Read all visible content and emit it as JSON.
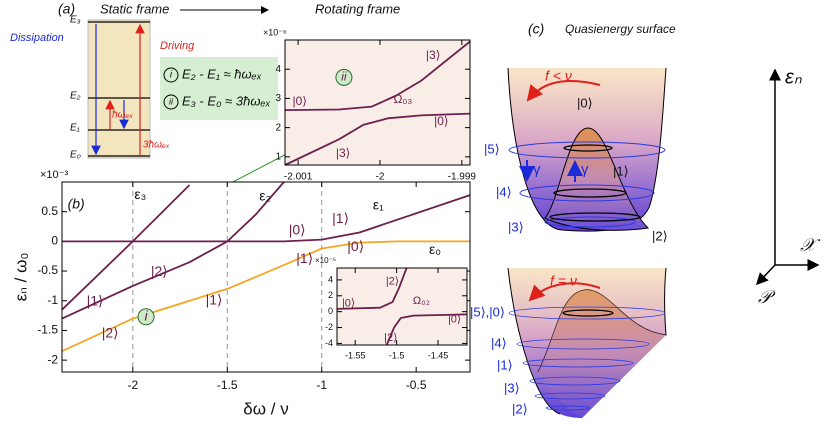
{
  "panel_a": {
    "label": "(a)",
    "static": "Static frame",
    "rotating": "Rotating frame",
    "driving": "Driving",
    "dissipation": "Dissipation",
    "levels": [
      "E₃",
      "E₂",
      "E₁",
      "E₀"
    ],
    "hw": "ħωₑₓ",
    "hw3": "3ħωₑₓ",
    "eq1_mark": "i",
    "eq1": "E₂ - E₁ ≈ ħωₑₓ",
    "eq2_mark": "ii",
    "eq2": "E₃ - E₀ ≈ 3ħωₑₓ"
  },
  "chart_data": [
    {
      "type": "line",
      "xlabel": "δω / ν",
      "ylabel": "εₙ / ω₀",
      "y_multiplier": "×10⁻³",
      "xlim": [
        -2.375,
        -0.215
      ],
      "xticks": [
        -2,
        -1.5,
        -1,
        -0.5
      ],
      "ylim": [
        -2.2,
        1.0
      ],
      "yticks": [
        0.5,
        0,
        -0.5,
        -1,
        -1.5,
        -2
      ],
      "vlines": [
        -2,
        -1.5,
        -1
      ],
      "series": [
        {
          "name": "ε₃",
          "color": "#6d1f4e",
          "x": [
            -2.375,
            -2,
            -1.7
          ],
          "values": [
            -1.15,
            0,
            0.95
          ]
        },
        {
          "name": "ε₂",
          "color": "#6d1f4e",
          "x": [
            -2.375,
            -2,
            -1.7,
            -1.5,
            -1.35,
            -1.2
          ],
          "values": [
            -1.3,
            -0.75,
            -0.35,
            0,
            0.45,
            1.0
          ]
        },
        {
          "name": "ε₁",
          "color": "#6d1f4e",
          "x": [
            -2.375,
            -1.2,
            -1,
            -0.8,
            -0.215
          ],
          "values": [
            0,
            0,
            0.03,
            0.15,
            0.78
          ]
        },
        {
          "name": "ε₀",
          "color": "#f5a623",
          "x": [
            -2.375,
            -2,
            -1.5,
            -1.2,
            -1,
            -0.8,
            -0.6,
            -0.215
          ],
          "values": [
            -1.85,
            -1.3,
            -0.8,
            -0.4,
            -0.12,
            -0.02,
            0,
            0
          ]
        }
      ],
      "annotations": [
        "(b)",
        "|0⟩",
        "|1⟩",
        "|0⟩",
        "|1⟩",
        "|2⟩",
        "|1⟩",
        "|1⟩",
        "|2⟩",
        "i"
      ]
    },
    {
      "type": "line",
      "y_multiplier": "×10⁻⁶",
      "xlim": [
        -2.00116,
        -1.9989
      ],
      "xticks": [
        -2.001,
        -2,
        -1.999
      ],
      "ylim": [
        0.72,
        5.0
      ],
      "yticks": [
        1,
        2,
        3,
        4
      ],
      "series": [
        {
          "color": "#6d1f4e",
          "x": [
            -2.00116,
            -2.0005,
            -2.0001,
            -1.9998,
            -1.9995,
            -1.9989
          ],
          "values": [
            2.6,
            2.62,
            2.72,
            3.1,
            3.6,
            4.95
          ]
        },
        {
          "color": "#6d1f4e",
          "x": [
            -2.00116,
            -2.0005,
            -2.0002,
            -1.9999,
            -1.9995,
            -1.9989
          ],
          "values": [
            0.72,
            1.6,
            2.1,
            2.32,
            2.42,
            2.48
          ]
        }
      ],
      "annotations": [
        "|0⟩",
        "|3⟩",
        "|0⟩",
        "|3⟩",
        "Ω₀₃",
        "ii"
      ]
    },
    {
      "type": "line",
      "y_multiplier": "×10⁻⁵",
      "xlim": [
        -1.572,
        -1.415
      ],
      "xticks": [
        -1.55,
        -1.5,
        -1.45
      ],
      "ylim": [
        -4.2,
        5.5
      ],
      "yticks": [
        -4,
        -2,
        0,
        2,
        4
      ],
      "series": [
        {
          "color": "#6d1f4e",
          "x": [
            -1.572,
            -1.52,
            -1.505,
            -1.497,
            -1.488
          ],
          "values": [
            0.35,
            0.5,
            1.2,
            3.0,
            5.5
          ]
        },
        {
          "color": "#6d1f4e",
          "x": [
            -1.512,
            -1.503,
            -1.495,
            -1.48,
            -1.415
          ],
          "values": [
            -4.2,
            -2.0,
            -0.8,
            -0.5,
            -0.35
          ]
        }
      ],
      "annotations": [
        "|0⟩",
        "|2⟩",
        "|0⟩",
        "Ω₀₂",
        "|2⟩"
      ]
    }
  ],
  "panel_c": {
    "label": "(c)",
    "title": "Quasienergy  surface",
    "axis_e": "εₙ",
    "axis_x": "𝒳",
    "axis_p": "𝒫",
    "top": {
      "condition": "f < ν",
      "kets": [
        "|5⟩",
        "|4⟩",
        "|3⟩",
        "|0⟩",
        "|1⟩",
        "|2⟩"
      ],
      "gammas": [
        "γ",
        "γ"
      ]
    },
    "bottom": {
      "condition": "f = ν",
      "kets": [
        "|5⟩,|0⟩",
        "|4⟩",
        "|1⟩",
        "|3⟩",
        "|2⟩"
      ]
    }
  }
}
